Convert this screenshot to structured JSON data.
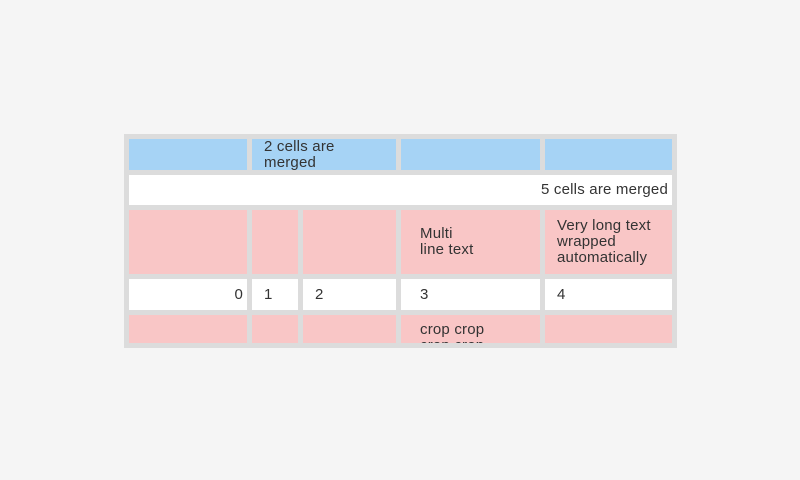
{
  "colors": {
    "page-bg": "#f5f5f5",
    "table-bg": "#dcdcdc",
    "cell-blue": "#a6d3f5",
    "cell-pink": "#f9c6c6",
    "cell-white": "#ffffff",
    "text": "#333333"
  },
  "table": {
    "columns": 5,
    "rows": [
      {
        "style": "blue",
        "cells": [
          {
            "text": ""
          },
          {
            "text": "2 cells are merged",
            "merged_columns": 2
          },
          {
            "text": ""
          },
          {
            "text": ""
          }
        ]
      },
      {
        "style": "white",
        "cells": [
          {
            "text": "5 cells are merged",
            "merged_columns": 5,
            "align": "right"
          }
        ]
      },
      {
        "style": "pink",
        "cells": [
          {
            "text": ""
          },
          {
            "text": ""
          },
          {
            "text": ""
          },
          {
            "text": "Multi\nline text"
          },
          {
            "text": "Very long text wrapped automatically"
          }
        ]
      },
      {
        "style": "white",
        "cells": [
          {
            "text": "0",
            "align": "right"
          },
          {
            "text": "1"
          },
          {
            "text": "2"
          },
          {
            "text": "3"
          },
          {
            "text": "4"
          }
        ]
      },
      {
        "style": "pink",
        "cells": [
          {
            "text": ""
          },
          {
            "text": ""
          },
          {
            "text": ""
          },
          {
            "text": "crop crop crop crop"
          },
          {
            "text": ""
          }
        ]
      }
    ]
  }
}
